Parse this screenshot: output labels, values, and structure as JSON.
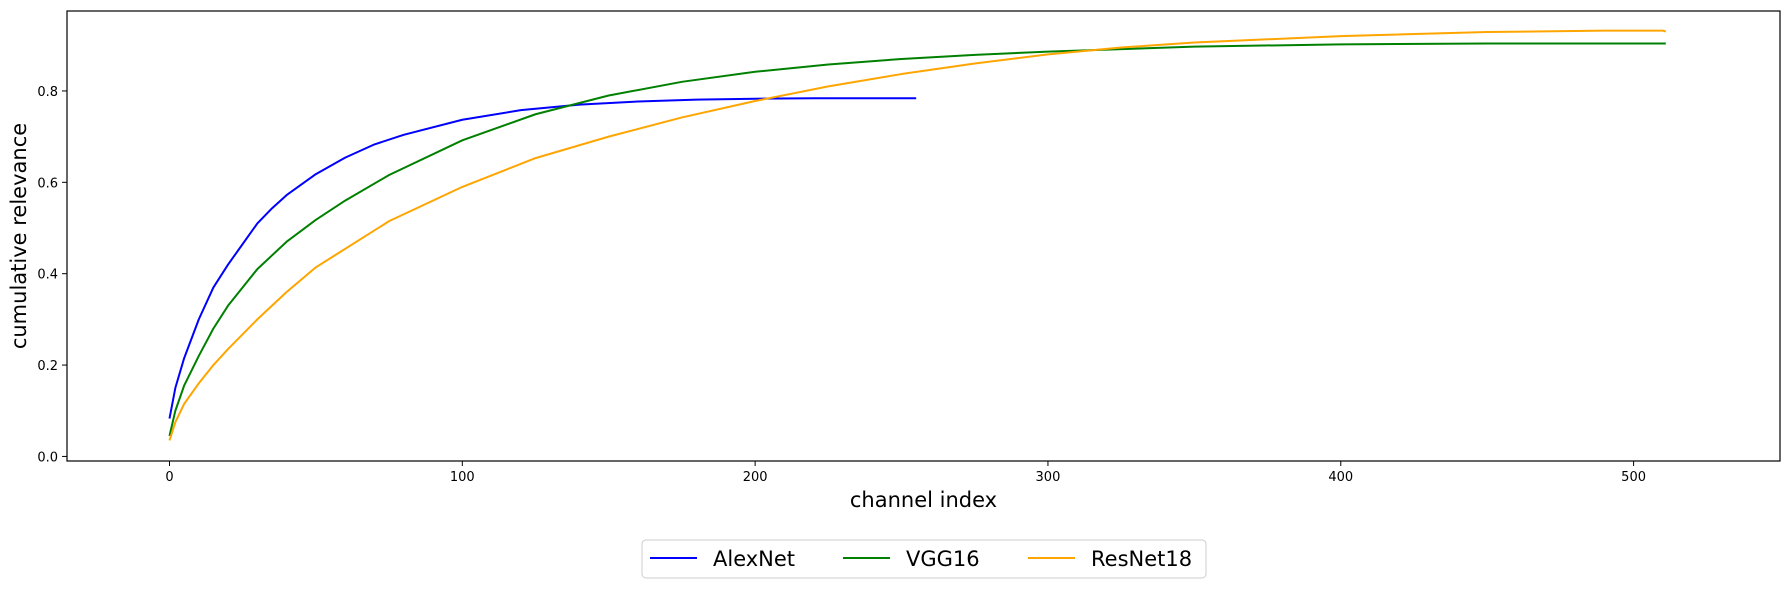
{
  "chart_data": {
    "type": "line",
    "title": "",
    "xlabel": "channel index",
    "ylabel": "cumulative relevance",
    "xlim": [
      -35,
      550
    ],
    "ylim": [
      -0.01,
      0.975
    ],
    "xticks": [
      0,
      100,
      200,
      300,
      400,
      500
    ],
    "xtick_labels": [
      "0",
      "100",
      "200",
      "300",
      "400",
      "500"
    ],
    "yticks": [
      0.0,
      0.2,
      0.4,
      0.6,
      0.8
    ],
    "ytick_labels": [
      "0.0",
      "0.2",
      "0.4",
      "0.6",
      "0.8"
    ],
    "grid": false,
    "legend_position": "bottom-center",
    "series": [
      {
        "name": "AlexNet",
        "color": "#0000ff",
        "x": [
          0,
          2,
          5,
          10,
          15,
          20,
          25,
          30,
          35,
          40,
          50,
          60,
          70,
          80,
          100,
          120,
          140,
          160,
          180,
          200,
          220,
          240,
          255
        ],
        "y": [
          0.083,
          0.15,
          0.215,
          0.3,
          0.37,
          0.42,
          0.465,
          0.51,
          0.543,
          0.572,
          0.618,
          0.654,
          0.683,
          0.704,
          0.737,
          0.758,
          0.77,
          0.777,
          0.781,
          0.783,
          0.784,
          0.784,
          0.784
        ]
      },
      {
        "name": "VGG16",
        "color": "#008000",
        "x": [
          0,
          2,
          5,
          10,
          15,
          20,
          30,
          40,
          50,
          60,
          75,
          100,
          125,
          150,
          175,
          200,
          225,
          250,
          275,
          300,
          350,
          400,
          450,
          511
        ],
        "y": [
          0.045,
          0.1,
          0.155,
          0.22,
          0.28,
          0.33,
          0.41,
          0.47,
          0.518,
          0.56,
          0.616,
          0.692,
          0.749,
          0.79,
          0.82,
          0.842,
          0.858,
          0.87,
          0.879,
          0.886,
          0.897,
          0.902,
          0.904,
          0.904
        ]
      },
      {
        "name": "ResNet18",
        "color": "#ffa500",
        "x": [
          0,
          2,
          5,
          10,
          15,
          20,
          30,
          40,
          50,
          75,
          100,
          125,
          150,
          175,
          200,
          225,
          250,
          275,
          300,
          325,
          350,
          400,
          450,
          490,
          510,
          511
        ],
        "y": [
          0.035,
          0.075,
          0.115,
          0.16,
          0.2,
          0.235,
          0.3,
          0.36,
          0.414,
          0.515,
          0.59,
          0.653,
          0.7,
          0.742,
          0.778,
          0.81,
          0.837,
          0.86,
          0.88,
          0.895,
          0.906,
          0.92,
          0.929,
          0.932,
          0.932,
          0.93
        ]
      }
    ]
  }
}
